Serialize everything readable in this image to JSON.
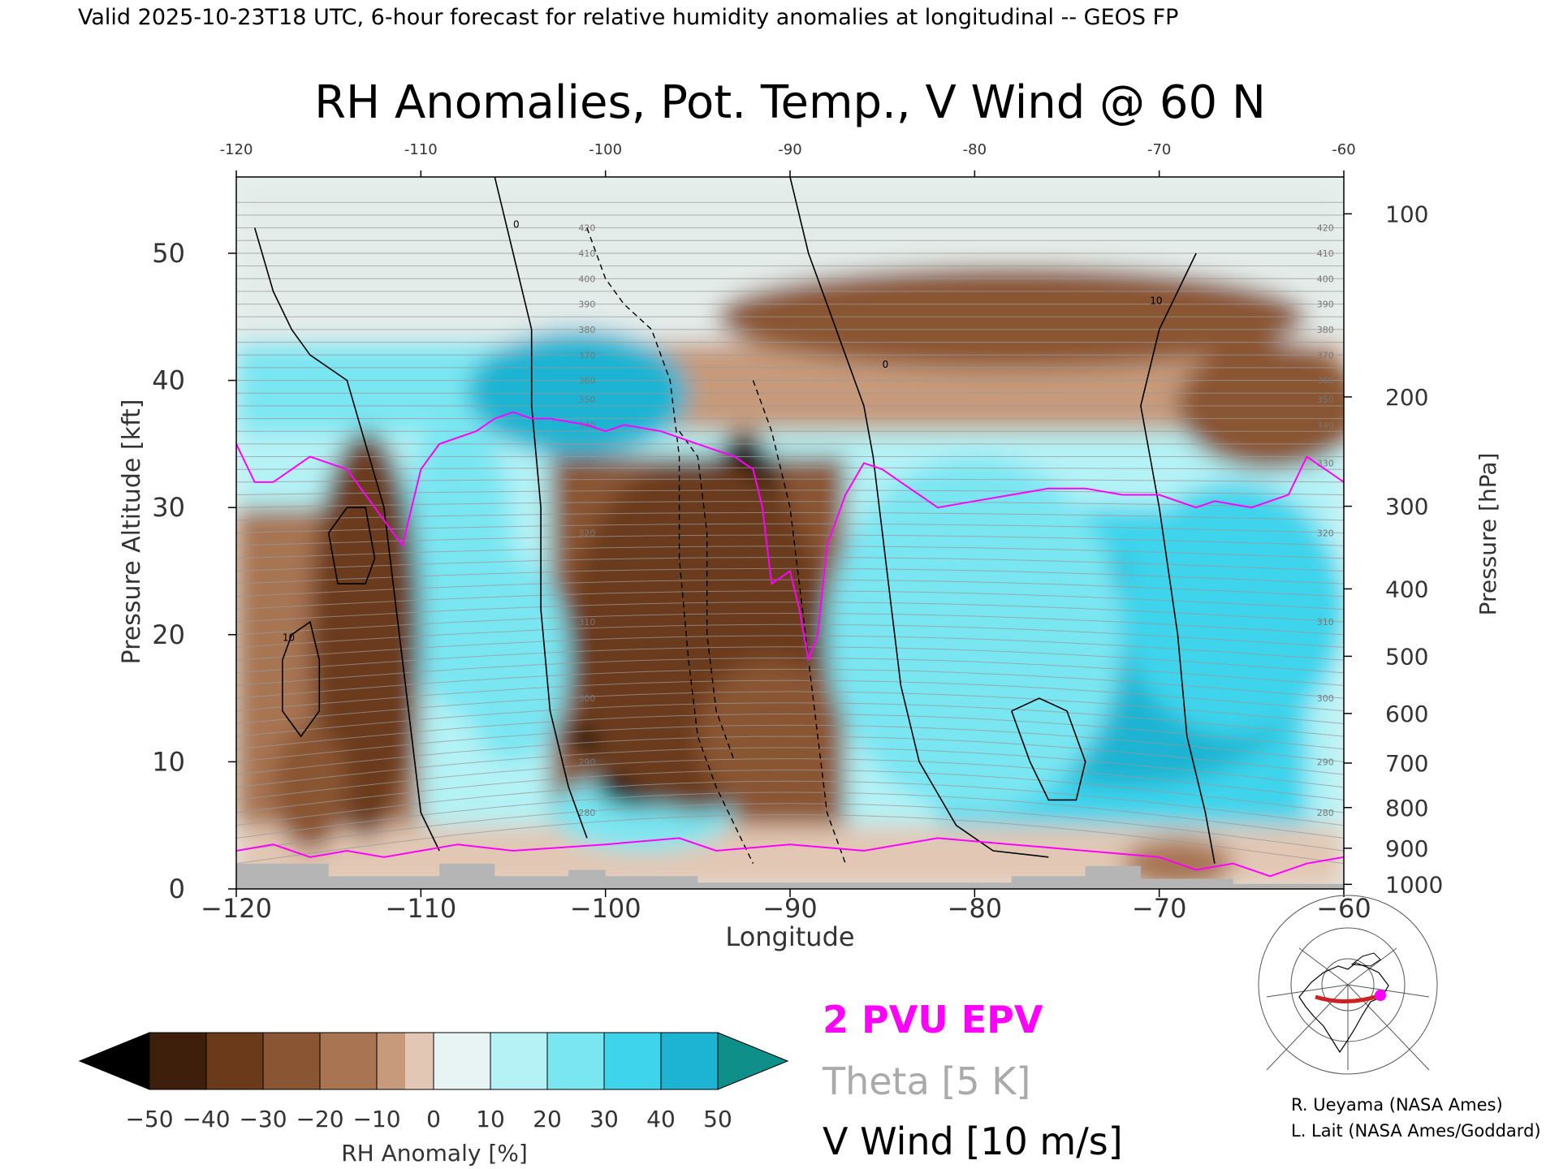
{
  "header": {
    "valid_line": "Valid 2025-10-23T18 UTC, 6-hour forecast for relative humidity anomalies at longitudinal -- GEOS FP"
  },
  "chart_data": {
    "type": "heatmap",
    "title": "RH Anomalies, Pot. Temp., V Wind @ 60 N",
    "xlabel": "Longitude",
    "ylabel": "Pressure Altitude [kft]",
    "y2label": "Pressure [hPa]",
    "xlim": [
      -120,
      -60
    ],
    "ylim": [
      0,
      56
    ],
    "x_ticks": [
      "-120",
      "-110",
      "-100",
      "-90",
      "-80",
      "-70",
      "-60"
    ],
    "x_ticks_bottom": [
      "−120",
      "−110",
      "−100",
      "−90",
      "−80",
      "−70",
      "−60"
    ],
    "y_ticks": [
      {
        "value": 0,
        "label": "0"
      },
      {
        "value": 10,
        "label": "10"
      },
      {
        "value": 20,
        "label": "20"
      },
      {
        "value": 30,
        "label": "30"
      },
      {
        "value": 40,
        "label": "40"
      },
      {
        "value": 50,
        "label": "50"
      }
    ],
    "pressure_ticks": [
      {
        "alt": 0.36,
        "label": "1000"
      },
      {
        "alt": 3.2,
        "label": "900"
      },
      {
        "alt": 6.4,
        "label": "800"
      },
      {
        "alt": 9.9,
        "label": "700"
      },
      {
        "alt": 13.8,
        "label": "600"
      },
      {
        "alt": 18.3,
        "label": "500"
      },
      {
        "alt": 23.6,
        "label": "400"
      },
      {
        "alt": 30.1,
        "label": "300"
      },
      {
        "alt": 38.7,
        "label": "200"
      },
      {
        "alt": 53.1,
        "label": "100"
      }
    ],
    "colorbar": {
      "label": "RH Anomaly [%]",
      "ticks": [
        "−50",
        "−40",
        "−30",
        "−20",
        "−10",
        "0",
        "10",
        "20",
        "30",
        "40",
        "50"
      ],
      "colors": [
        "#000000",
        "#3d1f0c",
        "#6b3a1a",
        "#8a5533",
        "#a87452",
        "#c69a7a",
        "#e2c7b4",
        "#e8f4f4",
        "#b4f2f6",
        "#7ae6f2",
        "#3ed4ec",
        "#1cb4d2",
        "#0a8aa6",
        "#0f8f8a"
      ]
    },
    "legend": [
      {
        "label": "2 PVU EPV",
        "color": "#ff00ff"
      },
      {
        "label": "Theta [5 K]",
        "color": "#aaaaaa"
      },
      {
        "label": "V Wind [10 m/s]",
        "color": "#000000"
      }
    ],
    "theta_labels": [
      "420",
      "410",
      "400",
      "390",
      "380",
      "370",
      "360",
      "350",
      "340",
      "330",
      "320",
      "310",
      "300",
      "290",
      "280"
    ],
    "wind_labels": [
      "0",
      "10"
    ],
    "pv2_line": [
      [
        -120,
        35
      ],
      [
        -119,
        32
      ],
      [
        -118,
        32
      ],
      [
        -117,
        33
      ],
      [
        -116,
        34
      ],
      [
        -114,
        33
      ],
      [
        -113,
        31
      ],
      [
        -112,
        29
      ],
      [
        -111,
        27
      ],
      [
        -110,
        33
      ],
      [
        -109,
        35
      ],
      [
        -107,
        36
      ],
      [
        -106,
        37
      ],
      [
        -105,
        37.5
      ],
      [
        -104,
        37
      ],
      [
        -103,
        37
      ],
      [
        -101,
        36.5
      ],
      [
        -100,
        36
      ],
      [
        -99,
        36.5
      ],
      [
        -97,
        36
      ],
      [
        -95,
        35
      ],
      [
        -93,
        34
      ],
      [
        -92,
        33
      ],
      [
        -91.5,
        30
      ],
      [
        -91,
        24
      ],
      [
        -90,
        25
      ],
      [
        -89.5,
        22
      ],
      [
        -89,
        18
      ],
      [
        -88.5,
        20
      ],
      [
        -88,
        27
      ],
      [
        -87,
        31
      ],
      [
        -86,
        33.5
      ],
      [
        -85,
        33
      ],
      [
        -84,
        32
      ],
      [
        -83,
        31
      ],
      [
        -82,
        30
      ],
      [
        -80,
        30.5
      ],
      [
        -78,
        31
      ],
      [
        -76,
        31.5
      ],
      [
        -74,
        31.5
      ],
      [
        -72,
        31
      ],
      [
        -70,
        31
      ],
      [
        -68,
        30
      ],
      [
        -67,
        30.5
      ],
      [
        -65,
        30
      ],
      [
        -63,
        31
      ],
      [
        -62,
        34
      ],
      [
        -60,
        32
      ]
    ],
    "pv2_line_low": [
      [
        -120,
        3
      ],
      [
        -118,
        3.5
      ],
      [
        -116,
        2.5
      ],
      [
        -114,
        3
      ],
      [
        -112,
        2.5
      ],
      [
        -110,
        3
      ],
      [
        -108,
        3.5
      ],
      [
        -105,
        3
      ],
      [
        -100,
        3.5
      ],
      [
        -96,
        4
      ],
      [
        -94,
        3
      ],
      [
        -90,
        3.5
      ],
      [
        -86,
        3
      ],
      [
        -82,
        4
      ],
      [
        -78,
        3.5
      ],
      [
        -74,
        3
      ],
      [
        -70,
        2.5
      ],
      [
        -68,
        1.5
      ],
      [
        -66,
        2
      ],
      [
        -64,
        1
      ],
      [
        -62,
        2
      ],
      [
        -60,
        2.5
      ]
    ],
    "wind_contours": [
      [
        [
          -119,
          52
        ],
        [
          -118,
          47
        ],
        [
          -117,
          44
        ],
        [
          -116,
          42
        ],
        [
          -114,
          40
        ],
        [
          -113,
          35
        ],
        [
          -112,
          30
        ],
        [
          -111.5,
          24
        ],
        [
          -111,
          18
        ],
        [
          -110.5,
          12
        ],
        [
          -110,
          6
        ],
        [
          -109,
          3
        ]
      ],
      [
        [
          -106,
          56
        ],
        [
          -105,
          50
        ],
        [
          -104,
          44
        ],
        [
          -104,
          38
        ],
        [
          -103.5,
          30
        ],
        [
          -103.5,
          22
        ],
        [
          -103,
          14
        ],
        [
          -102,
          8
        ],
        [
          -101,
          4
        ]
      ],
      [
        [
          -90,
          56
        ],
        [
          -89,
          50
        ],
        [
          -88,
          46
        ],
        [
          -87,
          42
        ],
        [
          -86,
          38
        ],
        [
          -85.5,
          34
        ],
        [
          -85,
          28
        ],
        [
          -84.5,
          22
        ],
        [
          -84,
          16
        ],
        [
          -83,
          10
        ],
        [
          -81,
          5
        ],
        [
          -79,
          3
        ],
        [
          -76,
          2.5
        ]
      ],
      [
        [
          -68,
          50
        ],
        [
          -70,
          44
        ],
        [
          -71,
          38
        ],
        [
          -70,
          30
        ],
        [
          -69,
          20
        ],
        [
          -68.5,
          12
        ],
        [
          -67.5,
          6
        ],
        [
          -67,
          2
        ]
      ],
      [
        [
          -117,
          20
        ],
        [
          -116,
          21
        ],
        [
          -115.5,
          18
        ],
        [
          -115.5,
          14
        ],
        [
          -116.5,
          12
        ],
        [
          -117.5,
          14
        ],
        [
          -117.5,
          18
        ],
        [
          -117,
          20
        ]
      ],
      [
        [
          -115,
          28
        ],
        [
          -114,
          30
        ],
        [
          -113,
          30
        ],
        [
          -112.5,
          26
        ],
        [
          -113,
          24
        ],
        [
          -114.5,
          24
        ],
        [
          -115,
          28
        ]
      ],
      [
        [
          -78,
          14
        ],
        [
          -76.5,
          15
        ],
        [
          -75,
          14
        ],
        [
          -74,
          10
        ],
        [
          -74.5,
          7
        ],
        [
          -76,
          7
        ],
        [
          -77,
          10
        ],
        [
          -78,
          14
        ]
      ]
    ],
    "wind_contours_dashed": [
      [
        [
          -101,
          52
        ],
        [
          -100,
          48
        ],
        [
          -99,
          46
        ],
        [
          -97.5,
          44
        ],
        [
          -96.5,
          40
        ],
        [
          -96,
          34
        ],
        [
          -96,
          26
        ],
        [
          -95.5,
          18
        ],
        [
          -95,
          12
        ],
        [
          -94,
          8
        ],
        [
          -93,
          5
        ],
        [
          -92,
          2
        ]
      ],
      [
        [
          -92,
          40
        ],
        [
          -91,
          36
        ],
        [
          -90,
          30
        ],
        [
          -89.5,
          24
        ],
        [
          -89,
          18
        ],
        [
          -88.5,
          12
        ],
        [
          -88,
          6
        ],
        [
          -87,
          2
        ]
      ],
      [
        [
          -96,
          36
        ],
        [
          -95,
          34
        ],
        [
          -94.5,
          28
        ],
        [
          -94.5,
          20
        ],
        [
          -94,
          14
        ],
        [
          -93,
          10
        ]
      ]
    ],
    "rh_blobs": [
      {
        "x": -101.5,
        "y": 39,
        "rx": 6,
        "ry": 5,
        "v": 45
      },
      {
        "x": -108,
        "y": 26,
        "rx": 3,
        "ry": 12,
        "v": 25
      },
      {
        "x": -105,
        "y": 18,
        "rx": 3,
        "ry": 8,
        "v": 20
      },
      {
        "x": -72,
        "y": 17,
        "rx": 10,
        "ry": 9,
        "v": 40
      },
      {
        "x": -80,
        "y": 20,
        "rx": 8,
        "ry": 14,
        "v": 25
      },
      {
        "x": -66,
        "y": 22,
        "rx": 6,
        "ry": 10,
        "v": 30
      },
      {
        "x": -98,
        "y": 6,
        "rx": 5,
        "ry": 3,
        "v": 20
      },
      {
        "x": -92.5,
        "y": 25,
        "rx": 2.5,
        "ry": 11,
        "v": -50
      },
      {
        "x": -96.5,
        "y": 17,
        "rx": 3,
        "ry": 4,
        "v": -50
      },
      {
        "x": -100,
        "y": 12,
        "rx": 2,
        "ry": 2,
        "v": -50
      },
      {
        "x": -98,
        "y": 8,
        "rx": 2.5,
        "ry": 1.6,
        "v": -50
      },
      {
        "x": -95,
        "y": 20,
        "rx": 7,
        "ry": 14,
        "v": -35
      },
      {
        "x": -91,
        "y": 12,
        "rx": 4,
        "ry": 6,
        "v": -30
      },
      {
        "x": -113,
        "y": 20,
        "rx": 3,
        "ry": 16,
        "v": -40
      },
      {
        "x": -116,
        "y": 8,
        "rx": 2,
        "ry": 5,
        "v": -25
      },
      {
        "x": -78,
        "y": 45,
        "rx": 16,
        "ry": 4,
        "v": -25
      },
      {
        "x": -64,
        "y": 38,
        "rx": 5,
        "ry": 5,
        "v": -25
      },
      {
        "x": -69,
        "y": 2,
        "rx": 3,
        "ry": 2,
        "v": -15
      }
    ],
    "map_credit": [
      "R. Ueyama (NASA Ames)",
      "L. Lait (NASA Ames/Goddard)"
    ]
  }
}
